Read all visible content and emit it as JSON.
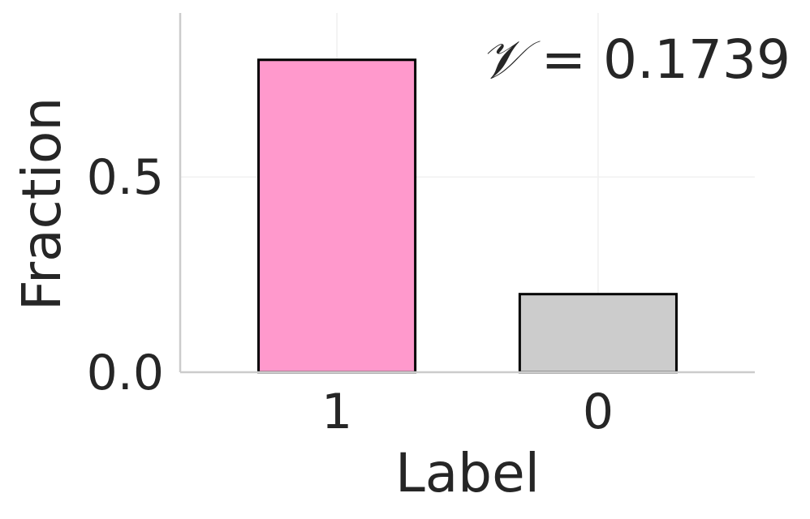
{
  "chart_data": {
    "type": "bar",
    "categories": [
      "1",
      "0"
    ],
    "values": [
      0.8,
      0.2
    ],
    "colors": [
      "#ff99cc",
      "#cccccc"
    ],
    "xlabel": "Label",
    "ylabel": "Fraction",
    "ylim": [
      0,
      0.92
    ],
    "yticks": [
      0.0,
      0.5
    ],
    "ytick_labels": [
      "0.0",
      "0.5"
    ],
    "grid": true,
    "annotation": {
      "symbol": "𝒱",
      "text": " = 0.1739"
    }
  }
}
